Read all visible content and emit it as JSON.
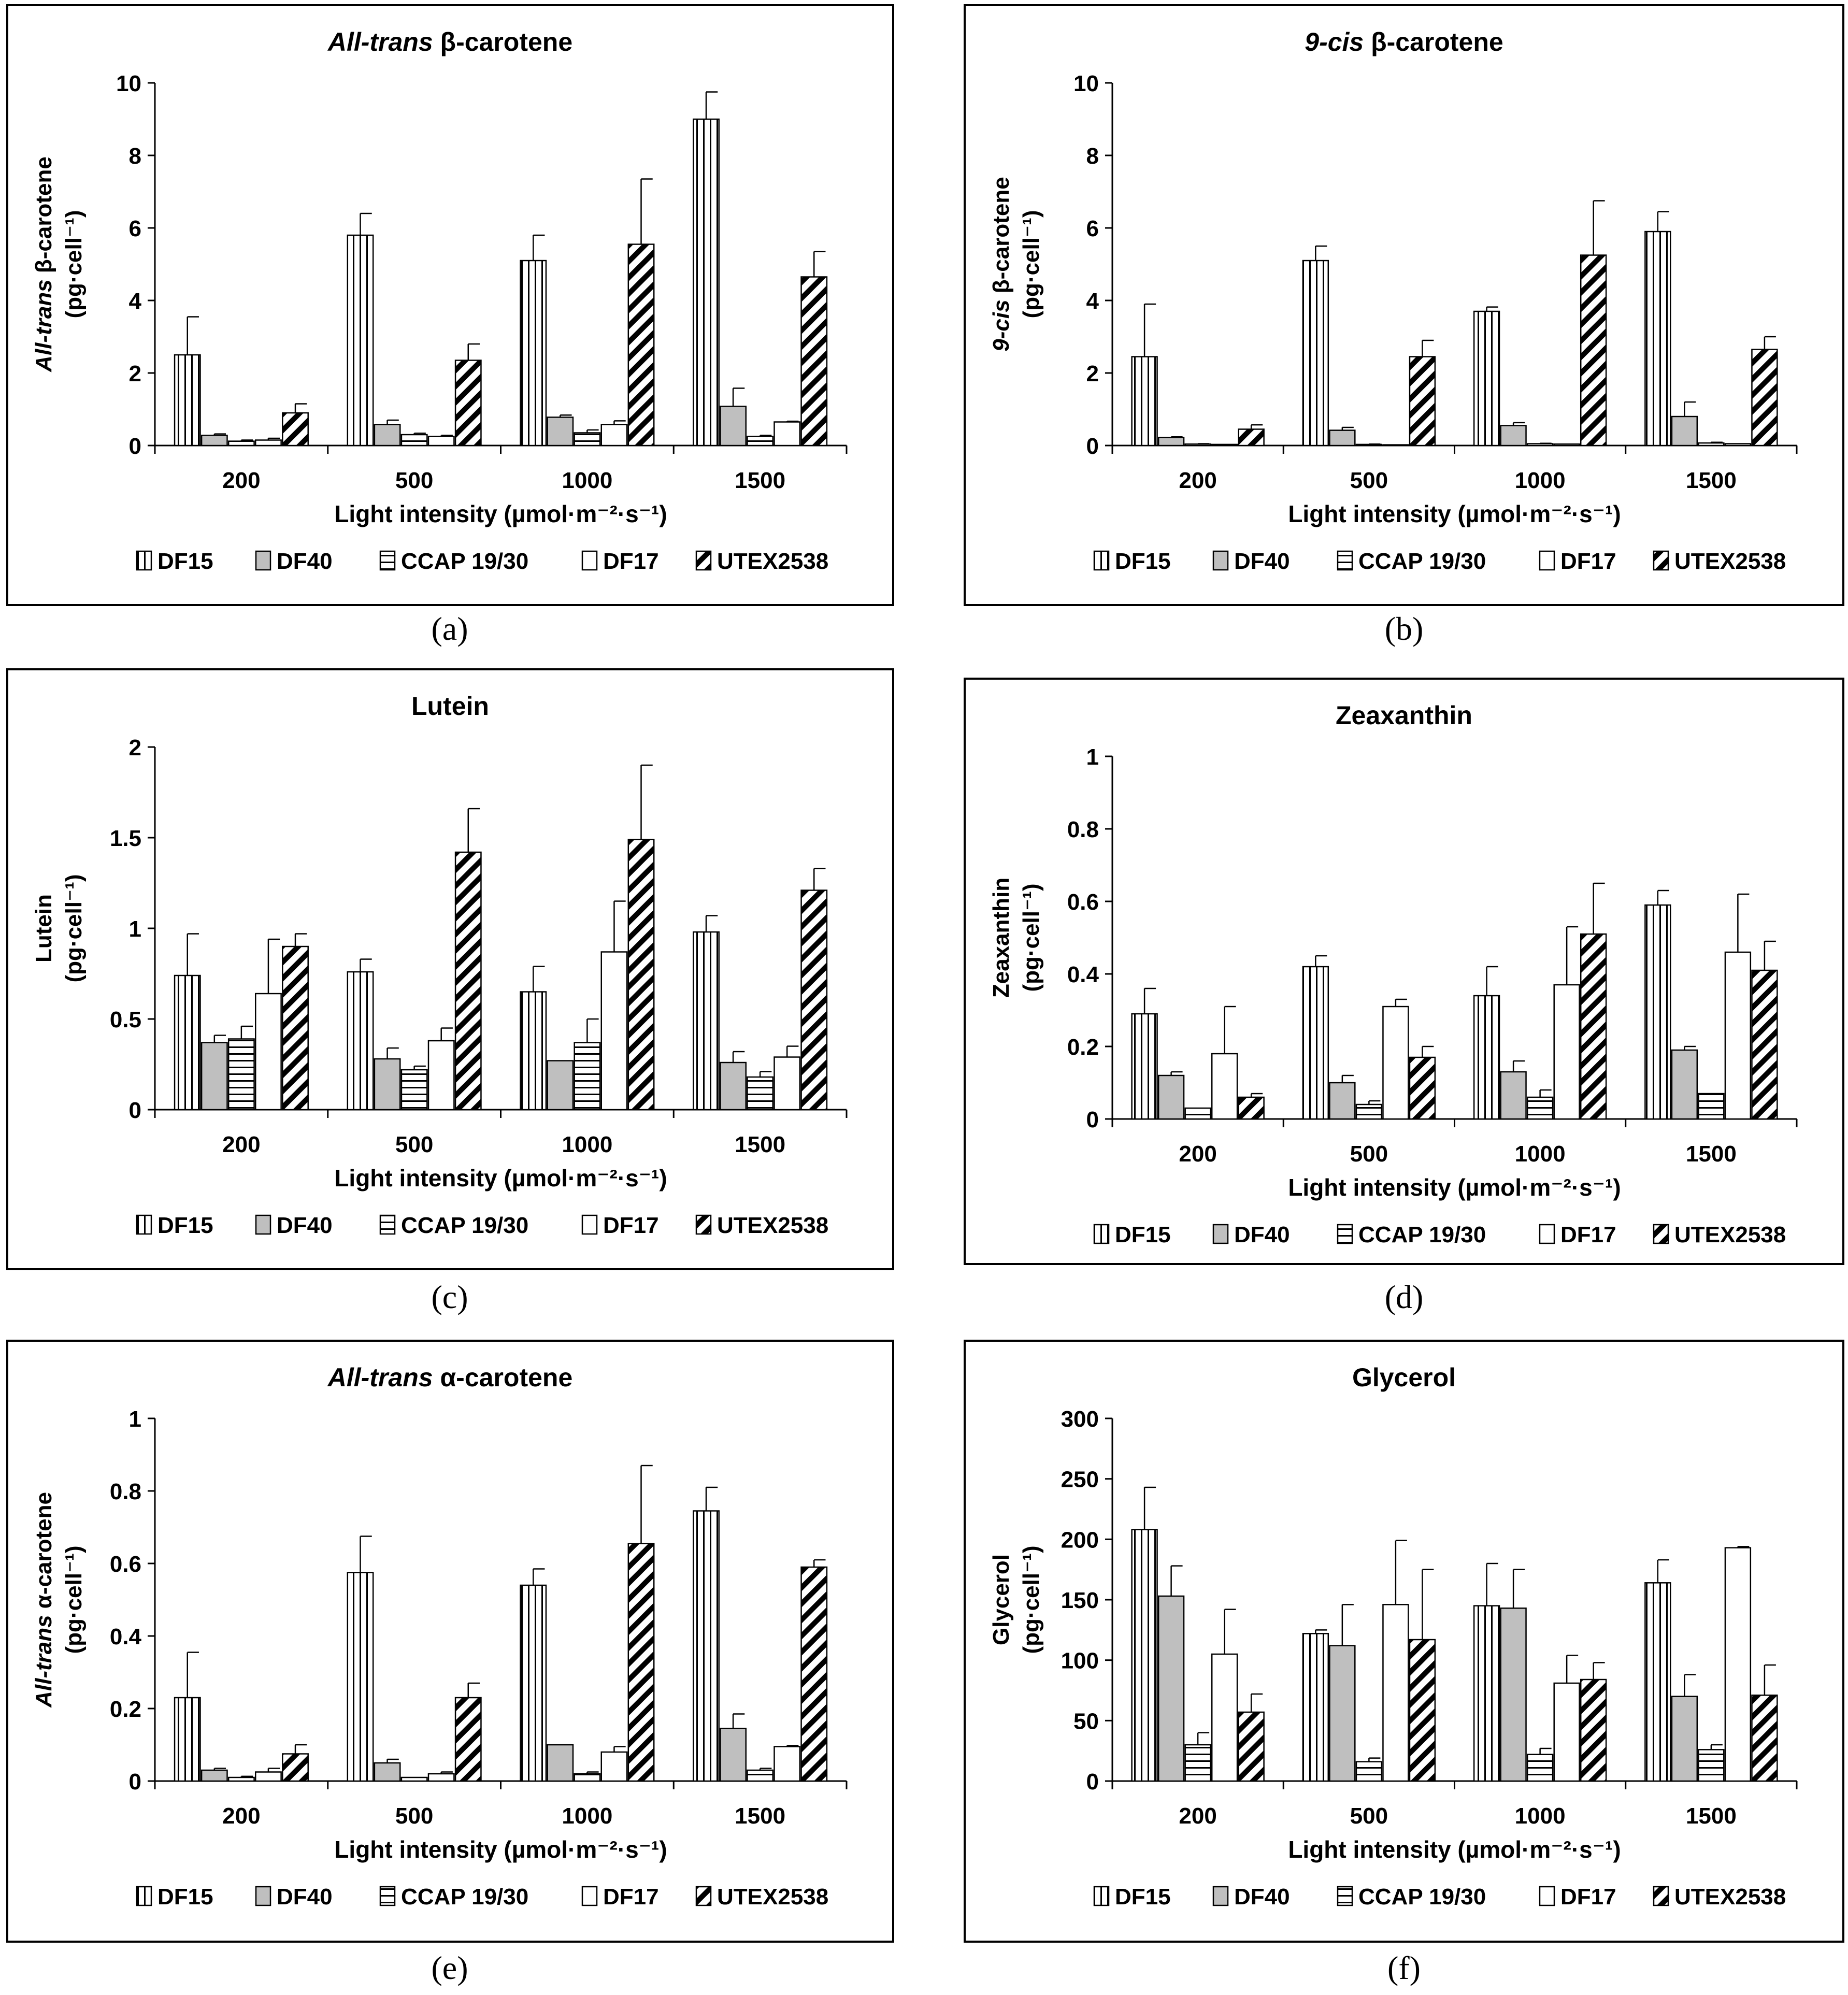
{
  "figure": {
    "series_names": [
      "DF15",
      "DF40",
      "CCAP 19/30",
      "DF17",
      "UTEX2538"
    ],
    "categories": [
      "200",
      "500",
      "1000",
      "1500"
    ],
    "xlabel": "Light intensity (µmol·m⁻²·s⁻¹)",
    "unit": "(pg·cell⁻¹)"
  },
  "chart_data": [
    {
      "id": "a",
      "type": "bar",
      "panel_label": "(a)",
      "title_italic": "All-trans",
      "title_rest": " β-carotene",
      "ylabel_italic": "All-trans",
      "ylabel_rest": " β-carotene",
      "ylabel_unit": "(pg·cell⁻¹)",
      "xlabel": "Light intensity (µmol·m⁻²·s⁻¹)",
      "categories": [
        "200",
        "500",
        "1000",
        "1500"
      ],
      "ylim": [
        0,
        10
      ],
      "yticks": [
        0,
        2,
        4,
        6,
        8,
        10
      ],
      "series": [
        {
          "name": "DF15",
          "values": [
            2.5,
            5.8,
            5.1,
            9.0
          ],
          "errors": [
            1.05,
            0.6,
            0.7,
            0.75
          ]
        },
        {
          "name": "DF40",
          "values": [
            0.28,
            0.58,
            0.78,
            1.08
          ],
          "errors": [
            0.04,
            0.12,
            0.06,
            0.5
          ]
        },
        {
          "name": "CCAP 19/30",
          "values": [
            0.12,
            0.3,
            0.35,
            0.25
          ],
          "errors": [
            0.03,
            0.04,
            0.08,
            0.03
          ]
        },
        {
          "name": "DF17",
          "values": [
            0.15,
            0.25,
            0.58,
            0.65
          ],
          "errors": [
            0.05,
            0.03,
            0.1,
            0.02
          ]
        },
        {
          "name": "UTEX2538",
          "values": [
            0.9,
            2.35,
            5.55,
            4.65
          ],
          "errors": [
            0.25,
            0.45,
            1.8,
            0.7
          ]
        }
      ]
    },
    {
      "id": "b",
      "type": "bar",
      "panel_label": "(b)",
      "title_italic": "9-cis",
      "title_rest": " β-carotene",
      "ylabel_italic": "9-cis",
      "ylabel_rest": " β-carotene",
      "ylabel_unit": "(pg·cell⁻¹)",
      "xlabel": "Light intensity (µmol·m⁻²·s⁻¹)",
      "categories": [
        "200",
        "500",
        "1000",
        "1500"
      ],
      "ylim": [
        0,
        10
      ],
      "yticks": [
        0,
        2,
        4,
        6,
        8,
        10
      ],
      "series": [
        {
          "name": "DF15",
          "values": [
            2.45,
            5.1,
            3.7,
            5.9
          ],
          "errors": [
            1.45,
            0.4,
            0.12,
            0.55
          ]
        },
        {
          "name": "DF40",
          "values": [
            0.22,
            0.42,
            0.55,
            0.8
          ],
          "errors": [
            0.02,
            0.08,
            0.08,
            0.4
          ]
        },
        {
          "name": "CCAP 19/30",
          "values": [
            0.04,
            0.03,
            0.05,
            0.07
          ],
          "errors": [
            0.01,
            0.01,
            0.01,
            0.02
          ]
        },
        {
          "name": "DF17",
          "values": [
            0.03,
            0.02,
            0.04,
            0.05
          ],
          "errors": [
            0.0,
            0.0,
            0.0,
            0.0
          ]
        },
        {
          "name": "UTEX2538",
          "values": [
            0.45,
            2.45,
            5.25,
            2.65
          ],
          "errors": [
            0.12,
            0.45,
            1.5,
            0.35
          ]
        }
      ]
    },
    {
      "id": "c",
      "type": "bar",
      "panel_label": "(c)",
      "title_italic": "",
      "title_rest": "Lutein",
      "ylabel_italic": "",
      "ylabel_rest": "Lutein",
      "ylabel_unit": "(pg·cell⁻¹)",
      "xlabel": "Light intensity (µmol·m⁻²·s⁻¹)",
      "categories": [
        "200",
        "500",
        "1000",
        "1500"
      ],
      "ylim": [
        0,
        2
      ],
      "yticks": [
        0,
        0.5,
        1,
        1.5,
        2
      ],
      "series": [
        {
          "name": "DF15",
          "values": [
            0.74,
            0.76,
            0.65,
            0.98
          ],
          "errors": [
            0.23,
            0.07,
            0.14,
            0.09
          ]
        },
        {
          "name": "DF40",
          "values": [
            0.37,
            0.28,
            0.27,
            0.26
          ],
          "errors": [
            0.04,
            0.06,
            0.0,
            0.06
          ]
        },
        {
          "name": "CCAP 19/30",
          "values": [
            0.39,
            0.22,
            0.37,
            0.18
          ],
          "errors": [
            0.07,
            0.02,
            0.13,
            0.03
          ]
        },
        {
          "name": "DF17",
          "values": [
            0.64,
            0.38,
            0.87,
            0.29
          ],
          "errors": [
            0.3,
            0.07,
            0.28,
            0.06
          ]
        },
        {
          "name": "UTEX2538",
          "values": [
            0.9,
            1.42,
            1.49,
            1.21
          ],
          "errors": [
            0.07,
            0.24,
            0.41,
            0.12
          ]
        }
      ]
    },
    {
      "id": "d",
      "type": "bar",
      "panel_label": "(d)",
      "title_italic": "",
      "title_rest": "Zeaxanthin",
      "ylabel_italic": "",
      "ylabel_rest": "Zeaxanthin",
      "ylabel_unit": "(pg·cell⁻¹)",
      "xlabel": "Light intensity (µmol·m⁻²·s⁻¹)",
      "categories": [
        "200",
        "500",
        "1000",
        "1500"
      ],
      "ylim": [
        0,
        1
      ],
      "yticks": [
        0,
        0.2,
        0.4,
        0.6,
        0.8,
        1
      ],
      "series": [
        {
          "name": "DF15",
          "values": [
            0.29,
            0.42,
            0.34,
            0.59
          ],
          "errors": [
            0.07,
            0.03,
            0.08,
            0.04
          ]
        },
        {
          "name": "DF40",
          "values": [
            0.12,
            0.1,
            0.13,
            0.19
          ],
          "errors": [
            0.01,
            0.02,
            0.03,
            0.01
          ]
        },
        {
          "name": "CCAP 19/30",
          "values": [
            0.03,
            0.04,
            0.06,
            0.07
          ],
          "errors": [
            0.0,
            0.01,
            0.02,
            0.0
          ]
        },
        {
          "name": "DF17",
          "values": [
            0.18,
            0.31,
            0.37,
            0.46
          ],
          "errors": [
            0.13,
            0.02,
            0.16,
            0.16
          ]
        },
        {
          "name": "UTEX2538",
          "values": [
            0.06,
            0.17,
            0.51,
            0.41
          ],
          "errors": [
            0.01,
            0.03,
            0.14,
            0.08
          ]
        }
      ]
    },
    {
      "id": "e",
      "type": "bar",
      "panel_label": "(e)",
      "title_italic": "All-trans",
      "title_rest": " α-carotene",
      "ylabel_italic": "All-trans",
      "ylabel_rest": " α-carotene",
      "ylabel_unit": "(pg·cell⁻¹)",
      "xlabel": "Light intensity (µmol·m⁻²·s⁻¹)",
      "categories": [
        "200",
        "500",
        "1000",
        "1500"
      ],
      "ylim": [
        0,
        1
      ],
      "yticks": [
        0,
        0.2,
        0.4,
        0.6,
        0.8,
        1
      ],
      "series": [
        {
          "name": "DF15",
          "values": [
            0.23,
            0.575,
            0.54,
            0.745
          ],
          "errors": [
            0.125,
            0.1,
            0.045,
            0.065
          ]
        },
        {
          "name": "DF40",
          "values": [
            0.03,
            0.05,
            0.1,
            0.145
          ],
          "errors": [
            0.005,
            0.01,
            0.0,
            0.04
          ]
        },
        {
          "name": "CCAP 19/30",
          "values": [
            0.01,
            0.01,
            0.02,
            0.03
          ],
          "errors": [
            0.003,
            0.0,
            0.005,
            0.005
          ]
        },
        {
          "name": "DF17",
          "values": [
            0.025,
            0.02,
            0.08,
            0.095
          ],
          "errors": [
            0.01,
            0.005,
            0.015,
            0.003
          ]
        },
        {
          "name": "UTEX2538",
          "values": [
            0.075,
            0.23,
            0.655,
            0.59
          ],
          "errors": [
            0.025,
            0.04,
            0.215,
            0.02
          ]
        }
      ]
    },
    {
      "id": "f",
      "type": "bar",
      "panel_label": "(f)",
      "title_italic": "",
      "title_rest": "Glycerol",
      "ylabel_italic": "",
      "ylabel_rest": "Glycerol",
      "ylabel_unit": "(pg·cell⁻¹)",
      "xlabel": "Light intensity (µmol·m⁻²·s⁻¹)",
      "categories": [
        "200",
        "500",
        "1000",
        "1500"
      ],
      "ylim": [
        0,
        300
      ],
      "yticks": [
        0,
        50,
        100,
        150,
        200,
        250,
        300
      ],
      "series": [
        {
          "name": "DF15",
          "values": [
            208,
            122,
            145,
            164
          ],
          "errors": [
            35,
            3,
            35,
            19
          ]
        },
        {
          "name": "DF40",
          "values": [
            153,
            112,
            143,
            70
          ],
          "errors": [
            25,
            34,
            32,
            18
          ]
        },
        {
          "name": "CCAP 19/30",
          "values": [
            30,
            16,
            22,
            26
          ],
          "errors": [
            10,
            3,
            5,
            4
          ]
        },
        {
          "name": "DF17",
          "values": [
            105,
            146,
            81,
            193
          ],
          "errors": [
            37,
            53,
            23,
            1
          ]
        },
        {
          "name": "UTEX2538",
          "values": [
            57,
            117,
            84,
            71
          ],
          "errors": [
            15,
            58,
            14,
            25
          ]
        }
      ]
    }
  ]
}
